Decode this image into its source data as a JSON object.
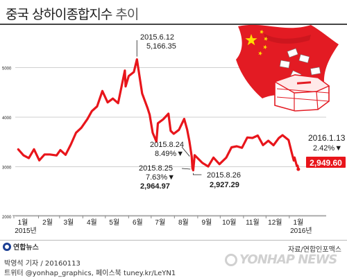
{
  "title": {
    "main": "중국 상하이종합지수",
    "suffix": "추이"
  },
  "footer": {
    "logo": "연합뉴스",
    "source": "자료/연합인포맥스",
    "byline1": "박영석 기자 / 20160113",
    "byline2": "트위터 @yonhap_graphics, 페이스북 tuney.kr/LeYN1",
    "watermark": "YONHAP NEWS"
  },
  "colors": {
    "line": "#e8151b",
    "flag": "#e31b23",
    "star": "#ffde00"
  },
  "illustration": "chinese-flag-and-ballot-box",
  "chart_data": {
    "type": "line",
    "x_tick_labels": [
      "1월",
      "2월",
      "3월",
      "4월",
      "5월",
      "6월",
      "7월",
      "8월",
      "9월",
      "10월",
      "11월",
      "12월",
      "1월"
    ],
    "x_tick_sublabels": {
      "0": "2015년",
      "12": "2016년"
    },
    "y_ticks": [
      "5000",
      "4000",
      "3000",
      "2000"
    ],
    "ylim": [
      2000,
      5400
    ],
    "grid": "horizontal",
    "points": [
      [
        "2015-01-05",
        3351
      ],
      [
        "2015-01-12",
        3229
      ],
      [
        "2015-01-19",
        3173
      ],
      [
        "2015-01-26",
        3353
      ],
      [
        "2015-02-02",
        3128
      ],
      [
        "2015-02-09",
        3247
      ],
      [
        "2015-02-16",
        3247
      ],
      [
        "2015-02-25",
        3228
      ],
      [
        "2015-03-02",
        3336
      ],
      [
        "2015-03-09",
        3241
      ],
      [
        "2015-03-16",
        3449
      ],
      [
        "2015-03-23",
        3687
      ],
      [
        "2015-03-30",
        3786
      ],
      [
        "2015-04-07",
        3961
      ],
      [
        "2015-04-13",
        4121
      ],
      [
        "2015-04-20",
        4217
      ],
      [
        "2015-04-27",
        4527
      ],
      [
        "2015-05-04",
        4298
      ],
      [
        "2015-05-11",
        4375
      ],
      [
        "2015-05-18",
        4283
      ],
      [
        "2015-05-27",
        4941
      ],
      [
        "2015-05-28",
        4620
      ],
      [
        "2015-06-01",
        4828
      ],
      [
        "2015-06-08",
        4910
      ],
      [
        "2015-06-12",
        5166.35
      ],
      [
        "2015-06-19",
        4478
      ],
      [
        "2015-06-26",
        4192
      ],
      [
        "2015-06-29",
        4053
      ],
      [
        "2015-07-03",
        3686
      ],
      [
        "2015-07-08",
        3507
      ],
      [
        "2015-07-10",
        3877
      ],
      [
        "2015-07-17",
        3957
      ],
      [
        "2015-07-24",
        4070
      ],
      [
        "2015-07-27",
        3725
      ],
      [
        "2015-07-31",
        3664
      ],
      [
        "2015-08-07",
        3744
      ],
      [
        "2015-08-14",
        3965
      ],
      [
        "2015-08-18",
        3748
      ],
      [
        "2015-08-21",
        3507
      ],
      [
        "2015-08-24",
        3209.91
      ],
      [
        "2015-08-25",
        2964.97
      ],
      [
        "2015-08-26",
        2927.29
      ],
      [
        "2015-08-28",
        3232
      ],
      [
        "2015-09-07",
        3080
      ],
      [
        "2015-09-15",
        3005
      ],
      [
        "2015-09-22",
        3185
      ],
      [
        "2015-09-30",
        3052
      ],
      [
        "2015-10-09",
        3183
      ],
      [
        "2015-10-16",
        3391
      ],
      [
        "2015-10-23",
        3412
      ],
      [
        "2015-10-30",
        3382
      ],
      [
        "2015-11-06",
        3590
      ],
      [
        "2015-11-13",
        3580
      ],
      [
        "2015-11-20",
        3630
      ],
      [
        "2015-11-27",
        3436
      ],
      [
        "2015-12-04",
        3524
      ],
      [
        "2015-12-11",
        3434
      ],
      [
        "2015-12-18",
        3578
      ],
      [
        "2015-12-23",
        3636
      ],
      [
        "2015-12-31",
        3539
      ],
      [
        "2016-01-04",
        3296
      ],
      [
        "2016-01-07",
        3125
      ],
      [
        "2016-01-08",
        3186
      ],
      [
        "2016-01-11",
        3016
      ],
      [
        "2016-01-12",
        3022
      ],
      [
        "2016-01-13",
        2949.6
      ]
    ],
    "annotations": [
      {
        "line1": "2015.6.12",
        "line2": "5,166.35",
        "ref": "2015-06-12"
      },
      {
        "line1": "2015.8.24",
        "line2": "8.49%▼",
        "ref": "2015-08-24"
      },
      {
        "line1": "2015.8.25",
        "line2": "7.63%▼",
        "line3": "2,964.97",
        "ref": "2015-08-25"
      },
      {
        "line1": "2015.8.26",
        "line2": "2,927.29",
        "ref": "2015-08-26"
      },
      {
        "line1": "2016.1.13",
        "line2": "2.42%▼",
        "line3": "2,949.60",
        "ref": "2016-01-13"
      }
    ]
  }
}
